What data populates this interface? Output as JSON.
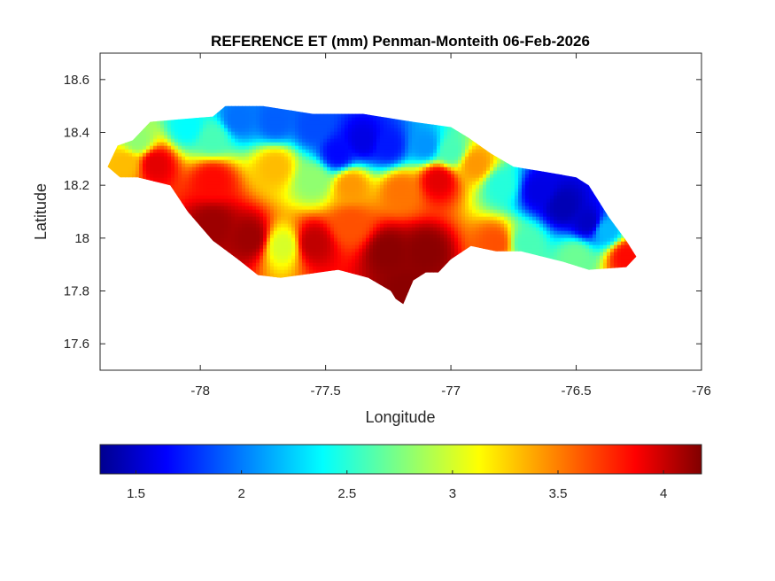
{
  "title": "REFERENCE ET (mm) Penman-Monteith 06-Feb-2026",
  "xlabel": "Longitude",
  "ylabel": "Latitude",
  "colormap": "jet",
  "colors": {
    "jet": [
      "#00008f",
      "#0000ff",
      "#0080ff",
      "#00ffff",
      "#80ff80",
      "#ffff00",
      "#ff8000",
      "#ff0000",
      "#800000"
    ],
    "axis": "#262626",
    "background": "#ffffff"
  },
  "chart_data": {
    "type": "heatmap",
    "title": "REFERENCE ET (mm) Penman-Monteith 06-Feb-2026",
    "xlabel": "Longitude",
    "ylabel": "Latitude",
    "xlim": [
      -78.4,
      -76
    ],
    "ylim": [
      17.5,
      18.7
    ],
    "xticks": [
      -78,
      -77.5,
      -77,
      -76.5,
      -76
    ],
    "xtick_labels": [
      "-78",
      "-77.5",
      "-77",
      "-76.5",
      "-76"
    ],
    "yticks": [
      17.6,
      17.8,
      18,
      18.2,
      18.4,
      18.6
    ],
    "ytick_labels": [
      "17.6",
      "17.8",
      "18",
      "18.2",
      "18.4",
      "18.6"
    ],
    "colorbar": {
      "range": [
        1.33,
        4.18
      ],
      "ticks": [
        1.5,
        2,
        2.5,
        3,
        3.5,
        4
      ],
      "tick_labels": [
        "1.5",
        "2",
        "2.5",
        "3",
        "3.5",
        "4"
      ],
      "orientation": "horizontal",
      "location": "below"
    },
    "grid": false,
    "region_outline_lonlat": [
      [
        -78.37,
        18.27
      ],
      [
        -78.33,
        18.35
      ],
      [
        -78.27,
        18.37
      ],
      [
        -78.2,
        18.44
      ],
      [
        -78.08,
        18.45
      ],
      [
        -77.95,
        18.46
      ],
      [
        -77.9,
        18.5
      ],
      [
        -77.75,
        18.5
      ],
      [
        -77.55,
        18.47
      ],
      [
        -77.35,
        18.47
      ],
      [
        -77.15,
        18.44
      ],
      [
        -77.0,
        18.42
      ],
      [
        -76.93,
        18.38
      ],
      [
        -76.84,
        18.32
      ],
      [
        -76.75,
        18.27
      ],
      [
        -76.62,
        18.25
      ],
      [
        -76.5,
        18.23
      ],
      [
        -76.45,
        18.2
      ],
      [
        -76.37,
        18.08
      ],
      [
        -76.3,
        17.99
      ],
      [
        -76.26,
        17.93
      ],
      [
        -76.3,
        17.89
      ],
      [
        -76.45,
        17.88
      ],
      [
        -76.55,
        17.91
      ],
      [
        -76.72,
        17.95
      ],
      [
        -76.82,
        17.95
      ],
      [
        -76.92,
        17.97
      ],
      [
        -77.0,
        17.92
      ],
      [
        -77.05,
        17.87
      ],
      [
        -77.1,
        17.87
      ],
      [
        -77.15,
        17.84
      ],
      [
        -77.19,
        17.75
      ],
      [
        -77.22,
        17.77
      ],
      [
        -77.24,
        17.8
      ],
      [
        -77.33,
        17.85
      ],
      [
        -77.45,
        17.88
      ],
      [
        -77.6,
        17.86
      ],
      [
        -77.68,
        17.85
      ],
      [
        -77.77,
        17.86
      ],
      [
        -77.85,
        17.92
      ],
      [
        -77.95,
        17.99
      ],
      [
        -78.05,
        18.1
      ],
      [
        -78.12,
        18.2
      ],
      [
        -78.25,
        18.23
      ],
      [
        -78.32,
        18.23
      ],
      [
        -78.37,
        18.27
      ]
    ],
    "field_anchors": {
      "description_omitted": true,
      "points": [
        {
          "lon": -78.25,
          "lat": 18.37,
          "value": 2.8
        },
        {
          "lon": -78.3,
          "lat": 18.28,
          "value": 3.3
        },
        {
          "lon": -78.18,
          "lat": 18.28,
          "value": 3.9
        },
        {
          "lon": -78.05,
          "lat": 18.42,
          "value": 2.4
        },
        {
          "lon": -77.95,
          "lat": 18.38,
          "value": 2.6
        },
        {
          "lon": -77.95,
          "lat": 18.22,
          "value": 3.8
        },
        {
          "lon": -77.85,
          "lat": 18.45,
          "value": 2.0
        },
        {
          "lon": -77.7,
          "lat": 18.44,
          "value": 1.95
        },
        {
          "lon": -77.55,
          "lat": 18.42,
          "value": 1.9
        },
        {
          "lon": -77.45,
          "lat": 18.32,
          "value": 1.7
        },
        {
          "lon": -77.35,
          "lat": 18.37,
          "value": 1.6
        },
        {
          "lon": -77.25,
          "lat": 18.35,
          "value": 1.75
        },
        {
          "lon": -77.1,
          "lat": 18.35,
          "value": 2.1
        },
        {
          "lon": -77.0,
          "lat": 18.33,
          "value": 2.6
        },
        {
          "lon": -76.9,
          "lat": 18.28,
          "value": 3.4
        },
        {
          "lon": -76.8,
          "lat": 18.2,
          "value": 2.5
        },
        {
          "lon": -76.65,
          "lat": 18.18,
          "value": 1.6
        },
        {
          "lon": -76.55,
          "lat": 18.12,
          "value": 1.45
        },
        {
          "lon": -76.45,
          "lat": 18.06,
          "value": 1.5
        },
        {
          "lon": -76.38,
          "lat": 18.03,
          "value": 2.2
        },
        {
          "lon": -76.3,
          "lat": 17.93,
          "value": 3.8
        },
        {
          "lon": -76.5,
          "lat": 17.93,
          "value": 2.7
        },
        {
          "lon": -76.7,
          "lat": 17.98,
          "value": 2.6
        },
        {
          "lon": -76.82,
          "lat": 17.98,
          "value": 3.6
        },
        {
          "lon": -77.7,
          "lat": 18.27,
          "value": 3.3
        },
        {
          "lon": -77.55,
          "lat": 18.22,
          "value": 2.8
        },
        {
          "lon": -77.4,
          "lat": 18.2,
          "value": 3.4
        },
        {
          "lon": -77.2,
          "lat": 18.18,
          "value": 3.5
        },
        {
          "lon": -77.05,
          "lat": 18.22,
          "value": 3.9
        },
        {
          "lon": -77.8,
          "lat": 18.0,
          "value": 4.1
        },
        {
          "lon": -77.67,
          "lat": 17.97,
          "value": 3.0
        },
        {
          "lon": -77.55,
          "lat": 17.98,
          "value": 4.0
        },
        {
          "lon": -77.4,
          "lat": 18.05,
          "value": 3.6
        },
        {
          "lon": -77.25,
          "lat": 17.95,
          "value": 4.15
        },
        {
          "lon": -77.1,
          "lat": 17.95,
          "value": 4.15
        },
        {
          "lon": -77.18,
          "lat": 17.8,
          "value": 4.15
        },
        {
          "lon": -77.95,
          "lat": 18.05,
          "value": 4.1
        }
      ]
    }
  }
}
